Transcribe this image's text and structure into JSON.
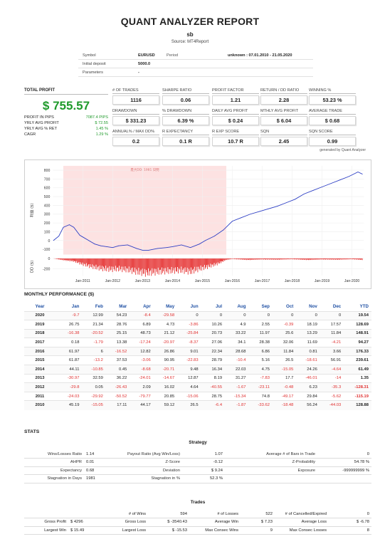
{
  "header": {
    "title": "QUANT ANALYZER REPORT",
    "subtitle": "sb",
    "source": "Source: MT4Report"
  },
  "info": {
    "symbol_label": "Symbol",
    "symbol_value": "EURUSD",
    "period_label": "Period",
    "period_value": "unknown : 07.01.2010 - 21.05.2020",
    "deposit_label": "Initial deposit",
    "deposit_value": "5000.0",
    "params_label": "Parameters",
    "params_value": "-"
  },
  "total_profit": {
    "label": "TOTAL PROFIT",
    "value": "$ 755.57",
    "rows": [
      {
        "k": "PROFIT IN PIPS",
        "v": "7087.4 PIPS"
      },
      {
        "k": "YRLY AVG PROFIT",
        "v": "$ 72.55"
      },
      {
        "k": "YRLY AVG % RET",
        "v": "1.45 %"
      },
      {
        "k": "CAGR",
        "v": "1.29 %"
      }
    ]
  },
  "metrics": [
    {
      "label": "# OF TRADES",
      "value": "1116"
    },
    {
      "label": "SHARPE RATIO",
      "value": "0.06"
    },
    {
      "label": "PROFIT FACTOR",
      "value": "1.21"
    },
    {
      "label": "RETURN / DD RATIO",
      "value": "2.28"
    },
    {
      "label": "WINNING %",
      "value": "53.23 %"
    },
    {
      "label": "DRAWDOWN",
      "value": "$ 331.23"
    },
    {
      "label": "% DRAWDOWN",
      "value": "6.39 %"
    },
    {
      "label": "DAILY AVG PROFIT",
      "value": "$ 0.24"
    },
    {
      "label": "MTHLY AVG PROFIT",
      "value": "$ 6.04"
    },
    {
      "label": "AVERAGE TRADE",
      "value": "$ 0.68"
    },
    {
      "label": "ANNUAL% / MAX DD%",
      "value": "0.2"
    },
    {
      "label": "R EXPECTANCY",
      "value": "0.1 R"
    },
    {
      "label": "R EXP SCORE",
      "value": "10.7 R"
    },
    {
      "label": "SQN",
      "value": "2.45"
    },
    {
      "label": "SQN SCORE",
      "value": "0.99"
    }
  ],
  "generated_by": "generated by Quant Analyzer",
  "chart_data": {
    "type": "line",
    "x_ticks": [
      "Jan-2011",
      "Jan-2012",
      "Jan-2013",
      "Jan-2014",
      "Jan-2015",
      "Jan-2016",
      "Jan-2017",
      "Jan-2018",
      "Jan-2019",
      "Jan-2020"
    ],
    "y_ticks_main": [
      800,
      700,
      600,
      500,
      400,
      300,
      200,
      100,
      0,
      -100
    ],
    "y_ticks_dd": [
      0,
      -200
    ],
    "ylabel_main": "利益 ($)",
    "ylabel_dd": "DD ($)",
    "ylim_main": [
      -160,
      850
    ],
    "ylim_dd": [
      -330,
      20
    ],
    "x_range": [
      2010.0,
      2020.4
    ],
    "drawdown_band_label": "最大DD: 1981 日間",
    "drawdown_band": [
      2010.35,
      2015.8
    ],
    "equity": [
      [
        2010.02,
        0
      ],
      [
        2010.2,
        50
      ],
      [
        2010.35,
        150
      ],
      [
        2010.55,
        180
      ],
      [
        2010.7,
        150
      ],
      [
        2010.9,
        60
      ],
      [
        2011.0,
        40
      ],
      [
        2011.2,
        0
      ],
      [
        2011.4,
        -40
      ],
      [
        2011.6,
        -60
      ],
      [
        2011.8,
        -70
      ],
      [
        2012.0,
        -80
      ],
      [
        2012.2,
        -60
      ],
      [
        2012.5,
        -50
      ],
      [
        2012.8,
        -90
      ],
      [
        2013.0,
        -110
      ],
      [
        2013.2,
        -110
      ],
      [
        2013.5,
        -90
      ],
      [
        2013.8,
        -80
      ],
      [
        2014.0,
        -70
      ],
      [
        2014.3,
        -50
      ],
      [
        2014.6,
        -80
      ],
      [
        2014.9,
        -40
      ],
      [
        2015.1,
        0
      ],
      [
        2015.4,
        50
      ],
      [
        2015.7,
        120
      ],
      [
        2016.0,
        220
      ],
      [
        2016.3,
        260
      ],
      [
        2016.6,
        300
      ],
      [
        2016.9,
        330
      ],
      [
        2017.2,
        360
      ],
      [
        2017.5,
        390
      ],
      [
        2017.8,
        430
      ],
      [
        2018.1,
        470
      ],
      [
        2018.4,
        530
      ],
      [
        2018.7,
        570
      ],
      [
        2019.0,
        610
      ],
      [
        2019.3,
        650
      ],
      [
        2019.6,
        690
      ],
      [
        2019.9,
        730
      ],
      [
        2020.2,
        780
      ],
      [
        2020.35,
        756
      ]
    ],
    "drawdown": [
      [
        2010.02,
        0
      ],
      [
        2010.4,
        -40
      ],
      [
        2010.7,
        -60
      ],
      [
        2011.0,
        -130
      ],
      [
        2011.3,
        -180
      ],
      [
        2011.6,
        -220
      ],
      [
        2011.9,
        -240
      ],
      [
        2012.2,
        -230
      ],
      [
        2012.5,
        -250
      ],
      [
        2012.8,
        -290
      ],
      [
        2013.1,
        -320
      ],
      [
        2013.4,
        -300
      ],
      [
        2013.7,
        -280
      ],
      [
        2014.0,
        -270
      ],
      [
        2014.3,
        -260
      ],
      [
        2014.6,
        -290
      ],
      [
        2014.9,
        -230
      ],
      [
        2015.2,
        -180
      ],
      [
        2015.5,
        -120
      ],
      [
        2015.8,
        -30
      ],
      [
        2016.0,
        -10
      ],
      [
        2016.5,
        -30
      ],
      [
        2017.0,
        -20
      ],
      [
        2017.5,
        -25
      ],
      [
        2018.0,
        -15
      ],
      [
        2018.5,
        -30
      ],
      [
        2019.0,
        -20
      ],
      [
        2019.5,
        -25
      ],
      [
        2020.0,
        -15
      ],
      [
        2020.35,
        -30
      ]
    ]
  },
  "monthly": {
    "title": "MONTHLY PERFORMANCE ($)",
    "headers": [
      "Year",
      "Jan",
      "Feb",
      "Mar",
      "Apr",
      "May",
      "Jun",
      "Jul",
      "Aug",
      "Sep",
      "Oct",
      "Nov",
      "Dec",
      "YTD"
    ],
    "rows": [
      [
        "2020",
        "-9.7",
        "12.99",
        "54.23",
        "-8.4",
        "-29.58",
        "0",
        "0",
        "0",
        "0",
        "0",
        "0",
        "0",
        "19.54"
      ],
      [
        "2019",
        "26.75",
        "21.34",
        "28.76",
        "6.89",
        "4.73",
        "-3.86",
        "10.26",
        "4.9",
        "2.55",
        "-0.39",
        "18.19",
        "17.57",
        "128.69"
      ],
      [
        "2018",
        "-16.38",
        "-20.52",
        "25.15",
        "48.73",
        "21.12",
        "-25.84",
        "20.73",
        "33.22",
        "11.97",
        "25.6",
        "13.29",
        "11.84",
        "148.91"
      ],
      [
        "2017",
        "0.18",
        "-1.79",
        "13.38",
        "-17.24",
        "-20.97",
        "-8.37",
        "27.06",
        "34.1",
        "28.38",
        "32.06",
        "11.69",
        "-4.21",
        "94.27"
      ],
      [
        "2016",
        "61.97",
        "6",
        "-16.52",
        "12.82",
        "26.86",
        "9.01",
        "22.34",
        "28.68",
        "6.86",
        "11.84",
        "0.81",
        "3.66",
        "176.33"
      ],
      [
        "2015",
        "61.87",
        "-13.2",
        "37.53",
        "-3.06",
        "90.95",
        "-22.83",
        "28.79",
        "-10.4",
        "5.16",
        "26.5",
        "-18.61",
        "56.91",
        "239.61"
      ],
      [
        "2014",
        "44.11",
        "-10.85",
        "0.45",
        "-8.68",
        "-20.71",
        "9.48",
        "16.34",
        "22.03",
        "4.75",
        "-15.05",
        "24.26",
        "-4.64",
        "61.49"
      ],
      [
        "2013",
        "-30.97",
        "32.59",
        "36.22",
        "-24.01",
        "-14.67",
        "12.87",
        "8.19",
        "31.27",
        "-7.83",
        "17.7",
        "-46.01",
        "-14",
        "1.35"
      ],
      [
        "2012",
        "-29.8",
        "0.05",
        "-26.43",
        "2.09",
        "16.02",
        "4.64",
        "-40.55",
        "-1.67",
        "-23.11",
        "-0.48",
        "6.23",
        "-35.3",
        "-128.31"
      ],
      [
        "2011",
        "-24.03",
        "-29.92",
        "-50.52",
        "-79.77",
        "20.85",
        "-15.06",
        "28.75",
        "-15.34",
        "74.8",
        "-49.17",
        "29.84",
        "-5.62",
        "-115.19"
      ],
      [
        "2010",
        "45.19",
        "-15.05",
        "17.11",
        "44.17",
        "59.12",
        "26.5",
        "-6.4",
        "-1.87",
        "-33.62",
        "-18.48",
        "56.24",
        "-44.03",
        "128.88"
      ]
    ]
  },
  "stats": {
    "title": "STATS",
    "strategy_title": "Strategy",
    "strategy_rows": [
      [
        "Wins/Losses Ratio",
        "1.14",
        "Payout Ratio (Avg Win/Loss)",
        "1.07",
        "Average # of Bars in Trade",
        "0"
      ],
      [
        "AHPR",
        "0.01",
        "Z-Score",
        "-0.12",
        "Z-Probability",
        "54.78 %"
      ],
      [
        "Expectancy",
        "0.68",
        "Deviation",
        "$ 9.24",
        "Exposure",
        "-999999999 %"
      ],
      [
        "Stagnation in Days",
        "1981",
        "Stagnation in %",
        "52.3 %",
        "",
        ""
      ]
    ],
    "trades_title": "Trades",
    "trades_rows": [
      [
        "",
        "",
        "# of Wins",
        "594",
        "# of Losses",
        "522",
        "# of Cancelled/Expired",
        "0"
      ],
      [
        "Gross Profit",
        "$ 4296",
        "Gross Loss",
        "$ -3540.43",
        "Average Win",
        "$ 7.23",
        "Average Loss",
        "$ -6.78"
      ],
      [
        "Largest Win",
        "$ 15.49",
        "Largest Loss",
        "$ -15.53",
        "Max Consec Wins",
        "9",
        "Max Consec Losses",
        "8"
      ]
    ]
  }
}
